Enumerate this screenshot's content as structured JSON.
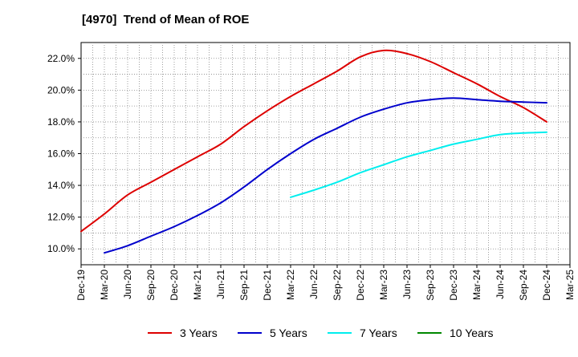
{
  "chart_data": {
    "type": "line",
    "title": "[4970]  Trend of Mean of ROE",
    "xlabel": "",
    "ylabel": "",
    "ylim": [
      9.0,
      23.0
    ],
    "grid": true,
    "legend_position": "bottom",
    "x_ticks": [
      "Dec-19",
      "Mar-20",
      "Jun-20",
      "Sep-20",
      "Dec-20",
      "Mar-21",
      "Jun-21",
      "Sep-21",
      "Dec-21",
      "Mar-22",
      "Jun-22",
      "Sep-22",
      "Dec-22",
      "Mar-23",
      "Jun-23",
      "Sep-23",
      "Dec-23",
      "Mar-24",
      "Jun-24",
      "Sep-24",
      "Dec-24",
      "Mar-25"
    ],
    "y_ticks": [
      {
        "value": 10,
        "label": "10.0%"
      },
      {
        "value": 12,
        "label": "12.0%"
      },
      {
        "value": 14,
        "label": "14.0%"
      },
      {
        "value": 16,
        "label": "16.0%"
      },
      {
        "value": 18,
        "label": "18.0%"
      },
      {
        "value": 20,
        "label": "20.0%"
      },
      {
        "value": 22,
        "label": "22.0%"
      }
    ],
    "series": [
      {
        "name": "3 Years",
        "color": "#dd0000",
        "x": [
          "Dec-19",
          "Mar-20",
          "Jun-20",
          "Sep-20",
          "Dec-20",
          "Mar-21",
          "Jun-21",
          "Sep-21",
          "Dec-21",
          "Mar-22",
          "Jun-22",
          "Sep-22",
          "Dec-22",
          "Mar-23",
          "Jun-23",
          "Sep-23",
          "Dec-23",
          "Mar-24",
          "Jun-24",
          "Sep-24",
          "Dec-24"
        ],
        "values": [
          11.1,
          12.2,
          13.4,
          14.2,
          15.0,
          15.8,
          16.6,
          17.7,
          18.7,
          19.6,
          20.4,
          21.2,
          22.1,
          22.5,
          22.3,
          21.8,
          21.1,
          20.4,
          19.6,
          18.9,
          18.0
        ]
      },
      {
        "name": "5 Years",
        "color": "#0000cc",
        "x": [
          "Mar-20",
          "Jun-20",
          "Sep-20",
          "Dec-20",
          "Mar-21",
          "Jun-21",
          "Sep-21",
          "Dec-21",
          "Mar-22",
          "Jun-22",
          "Sep-22",
          "Dec-22",
          "Mar-23",
          "Jun-23",
          "Sep-23",
          "Dec-23",
          "Mar-24",
          "Jun-24",
          "Sep-24",
          "Dec-24"
        ],
        "values": [
          9.75,
          10.2,
          10.8,
          11.4,
          12.1,
          12.9,
          13.9,
          15.0,
          16.0,
          16.9,
          17.6,
          18.3,
          18.8,
          19.2,
          19.4,
          19.5,
          19.4,
          19.3,
          19.25,
          19.2
        ]
      },
      {
        "name": "7 Years",
        "color": "#00eeee",
        "x": [
          "Mar-22",
          "Jun-22",
          "Sep-22",
          "Dec-22",
          "Mar-23",
          "Jun-23",
          "Sep-23",
          "Dec-23",
          "Mar-24",
          "Jun-24",
          "Sep-24",
          "Dec-24"
        ],
        "values": [
          13.25,
          13.7,
          14.2,
          14.8,
          15.3,
          15.8,
          16.2,
          16.6,
          16.9,
          17.2,
          17.3,
          17.35
        ]
      },
      {
        "name": "10 Years",
        "color": "#008800",
        "x": [],
        "values": []
      }
    ]
  }
}
